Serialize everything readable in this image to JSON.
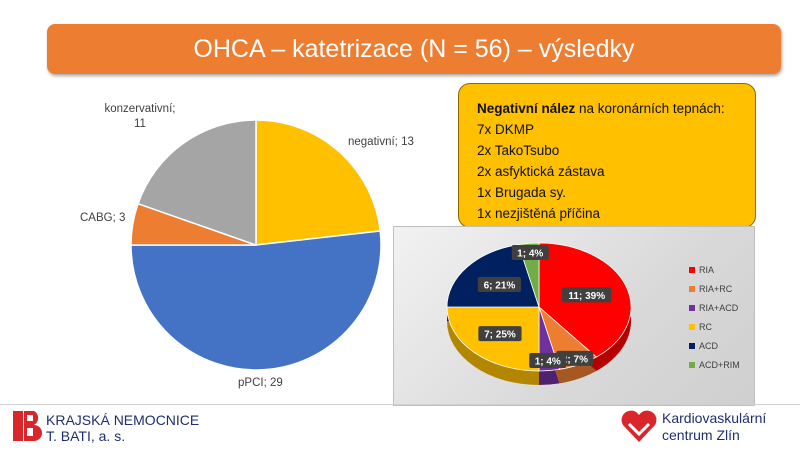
{
  "title": "OHCA – katetrizace (N = 56) – výsledky",
  "note": {
    "heading": "Negativní nález",
    "heading_rest": " na koronárních tepnách:",
    "lines": [
      "7x DKMP",
      "2x TakoTsubo",
      "2x asfyktická zástava",
      "1x Brugada sy.",
      "1x nezjištěná příčina"
    ]
  },
  "chart_data": [
    {
      "type": "pie",
      "slices": [
        {
          "label": "negativní; 13",
          "name": "negativní",
          "value": 13,
          "color": "#ffc000"
        },
        {
          "label": "pPCI; 29",
          "name": "pPCI",
          "value": 29,
          "color": "#4472c4"
        },
        {
          "label": "CABG; 3",
          "name": "CABG",
          "value": 3,
          "color": "#ed7d31"
        },
        {
          "label": "konzervativní;",
          "label2": "11",
          "name": "konzervativní",
          "value": 11,
          "color": "#a5a5a5"
        }
      ]
    },
    {
      "type": "pie",
      "slices": [
        {
          "name": "RIA",
          "value": 11,
          "label": "11; 39%",
          "color": "#ff0000"
        },
        {
          "name": "RIA+RC",
          "value": 2,
          "label": "2; 7%",
          "color": "#ed7d31"
        },
        {
          "name": "RIA+ACD",
          "value": 1,
          "label": "1; 4%",
          "color": "#7030a0"
        },
        {
          "name": "RC",
          "value": 7,
          "label": "7; 25%",
          "color": "#ffc000"
        },
        {
          "name": "ACD",
          "value": 6,
          "label": "6; 21%",
          "color": "#002060"
        },
        {
          "name": "ACD+RIM",
          "value": 1,
          "label": "1; 4%",
          "color": "#70ad47"
        }
      ],
      "legend": {
        "position": "right",
        "entries": [
          "RIA",
          "RIA+RC",
          "RIA+ACD",
          "RC",
          "ACD",
          "ACD+RIM"
        ]
      }
    }
  ],
  "footer": {
    "left_logo_line1": "KRAJSKÁ NEMOCNICE",
    "left_logo_line2": "T. BATI, a. s.",
    "right_logo_line1": "Kardiovaskulární",
    "right_logo_line2": "centrum Zlín"
  }
}
